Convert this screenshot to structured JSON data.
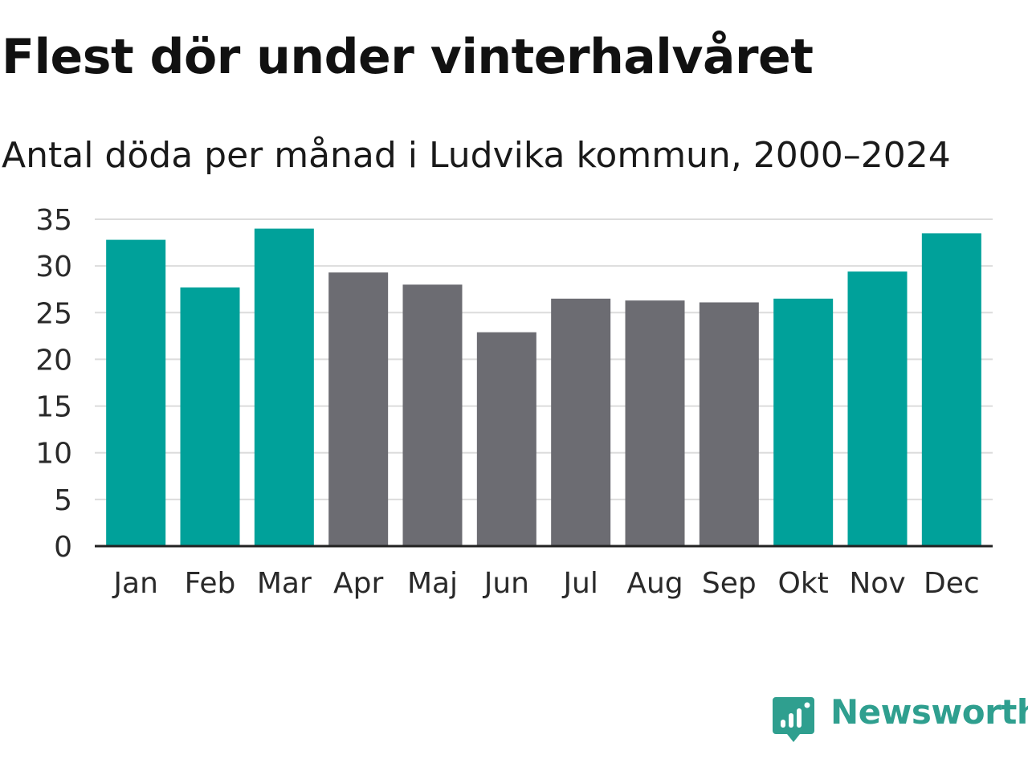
{
  "chart_data": {
    "type": "bar",
    "title": "Flest dör under vinterhalvåret",
    "subtitle": "Antal döda per månad i Ludvika kommun, 2000–2024",
    "categories": [
      "Jan",
      "Feb",
      "Mar",
      "Apr",
      "Maj",
      "Jun",
      "Jul",
      "Aug",
      "Sep",
      "Okt",
      "Nov",
      "Dec"
    ],
    "values": [
      32.8,
      27.7,
      34.0,
      29.3,
      28.0,
      22.9,
      26.5,
      26.3,
      26.1,
      26.5,
      29.4,
      33.5
    ],
    "highlight": [
      true,
      true,
      true,
      false,
      false,
      false,
      false,
      false,
      false,
      true,
      true,
      true
    ],
    "ylim": [
      0,
      35
    ],
    "yticks": [
      0,
      5,
      10,
      15,
      20,
      25,
      30,
      35
    ],
    "grid": true,
    "xlabel": "",
    "ylabel": ""
  },
  "colors": {
    "highlight": "#00a19a",
    "base": "#6c6c72",
    "grid": "#dcdcdc",
    "axis": "#222222",
    "tick_text": "#2a2a2a",
    "brand": "#2f9f8f"
  },
  "brand": {
    "name": "Newsworthy",
    "icon": "newsworthy-logo-icon"
  }
}
